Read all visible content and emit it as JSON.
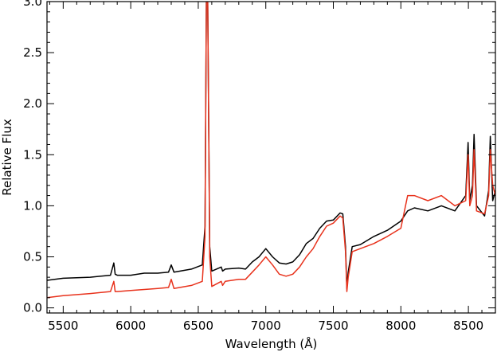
{
  "chart_data": {
    "type": "line",
    "title": "",
    "xlabel": "Wavelength (Å)",
    "ylabel": "Relative Flux",
    "xlim": [
      5380,
      8700
    ],
    "ylim": [
      -0.05,
      3.0
    ],
    "grid": false,
    "legend": "none",
    "xticks": [
      5500,
      6000,
      6500,
      7000,
      7500,
      8000,
      8500
    ],
    "xtick_labels": [
      "5500",
      "6000",
      "6500",
      "7000",
      "7500",
      "8000",
      "8500"
    ],
    "yticks": [
      0.0,
      0.5,
      1.0,
      1.5,
      2.0,
      2.5,
      3.0
    ],
    "ytick_labels": [
      "0.0",
      "0.5",
      "1.0",
      "1.5",
      "2.0",
      "2.5",
      "3.0"
    ],
    "series": [
      {
        "color": "#000000",
        "x": [
          5380,
          5500,
          5700,
          5850,
          5875,
          5885,
          5900,
          6000,
          6100,
          6200,
          6280,
          6300,
          6320,
          6450,
          6530,
          6550,
          6560,
          6563,
          6570,
          6585,
          6600,
          6670,
          6680,
          6700,
          6800,
          6850,
          6900,
          6950,
          7000,
          7050,
          7100,
          7150,
          7200,
          7250,
          7300,
          7350,
          7400,
          7450,
          7500,
          7550,
          7570,
          7590,
          7600,
          7610,
          7640,
          7700,
          7800,
          7900,
          8000,
          8050,
          8100,
          8200,
          8300,
          8400,
          8480,
          8498,
          8510,
          8530,
          8542,
          8560,
          8620,
          8650,
          8662,
          8680,
          8700
        ],
        "y": [
          0.27,
          0.29,
          0.3,
          0.32,
          0.44,
          0.33,
          0.32,
          0.32,
          0.34,
          0.34,
          0.35,
          0.42,
          0.35,
          0.38,
          0.42,
          0.8,
          3.0,
          3.0,
          3.0,
          0.6,
          0.36,
          0.4,
          0.36,
          0.38,
          0.39,
          0.38,
          0.45,
          0.5,
          0.58,
          0.5,
          0.44,
          0.43,
          0.45,
          0.52,
          0.63,
          0.68,
          0.78,
          0.85,
          0.86,
          0.93,
          0.92,
          0.6,
          0.19,
          0.35,
          0.6,
          0.62,
          0.7,
          0.76,
          0.85,
          0.95,
          0.98,
          0.95,
          1.0,
          0.95,
          1.1,
          1.62,
          1.05,
          1.2,
          1.7,
          1.0,
          0.9,
          1.15,
          1.68,
          1.05,
          1.15
        ]
      },
      {
        "color": "#e8321c",
        "x": [
          5380,
          5500,
          5700,
          5850,
          5875,
          5885,
          5900,
          6000,
          6100,
          6200,
          6280,
          6300,
          6320,
          6450,
          6530,
          6550,
          6560,
          6563,
          6570,
          6585,
          6600,
          6670,
          6680,
          6700,
          6800,
          6850,
          6900,
          6950,
          7000,
          7050,
          7100,
          7150,
          7200,
          7250,
          7300,
          7350,
          7400,
          7450,
          7500,
          7550,
          7570,
          7590,
          7600,
          7610,
          7640,
          7700,
          7800,
          7900,
          8000,
          8050,
          8100,
          8200,
          8300,
          8400,
          8480,
          8498,
          8510,
          8530,
          8542,
          8560,
          8620,
          8650,
          8662,
          8680,
          8700
        ],
        "y": [
          0.1,
          0.12,
          0.14,
          0.16,
          0.26,
          0.16,
          0.16,
          0.17,
          0.18,
          0.19,
          0.2,
          0.28,
          0.19,
          0.22,
          0.26,
          0.7,
          3.0,
          3.0,
          3.0,
          0.5,
          0.21,
          0.26,
          0.22,
          0.26,
          0.28,
          0.28,
          0.35,
          0.42,
          0.5,
          0.42,
          0.33,
          0.31,
          0.33,
          0.4,
          0.5,
          0.58,
          0.7,
          0.8,
          0.83,
          0.9,
          0.88,
          0.55,
          0.16,
          0.3,
          0.55,
          0.58,
          0.63,
          0.7,
          0.78,
          1.1,
          1.1,
          1.05,
          1.1,
          1.0,
          1.05,
          1.5,
          1.0,
          1.1,
          1.55,
          0.95,
          0.92,
          1.1,
          1.55,
          1.2,
          1.1
        ]
      }
    ]
  }
}
